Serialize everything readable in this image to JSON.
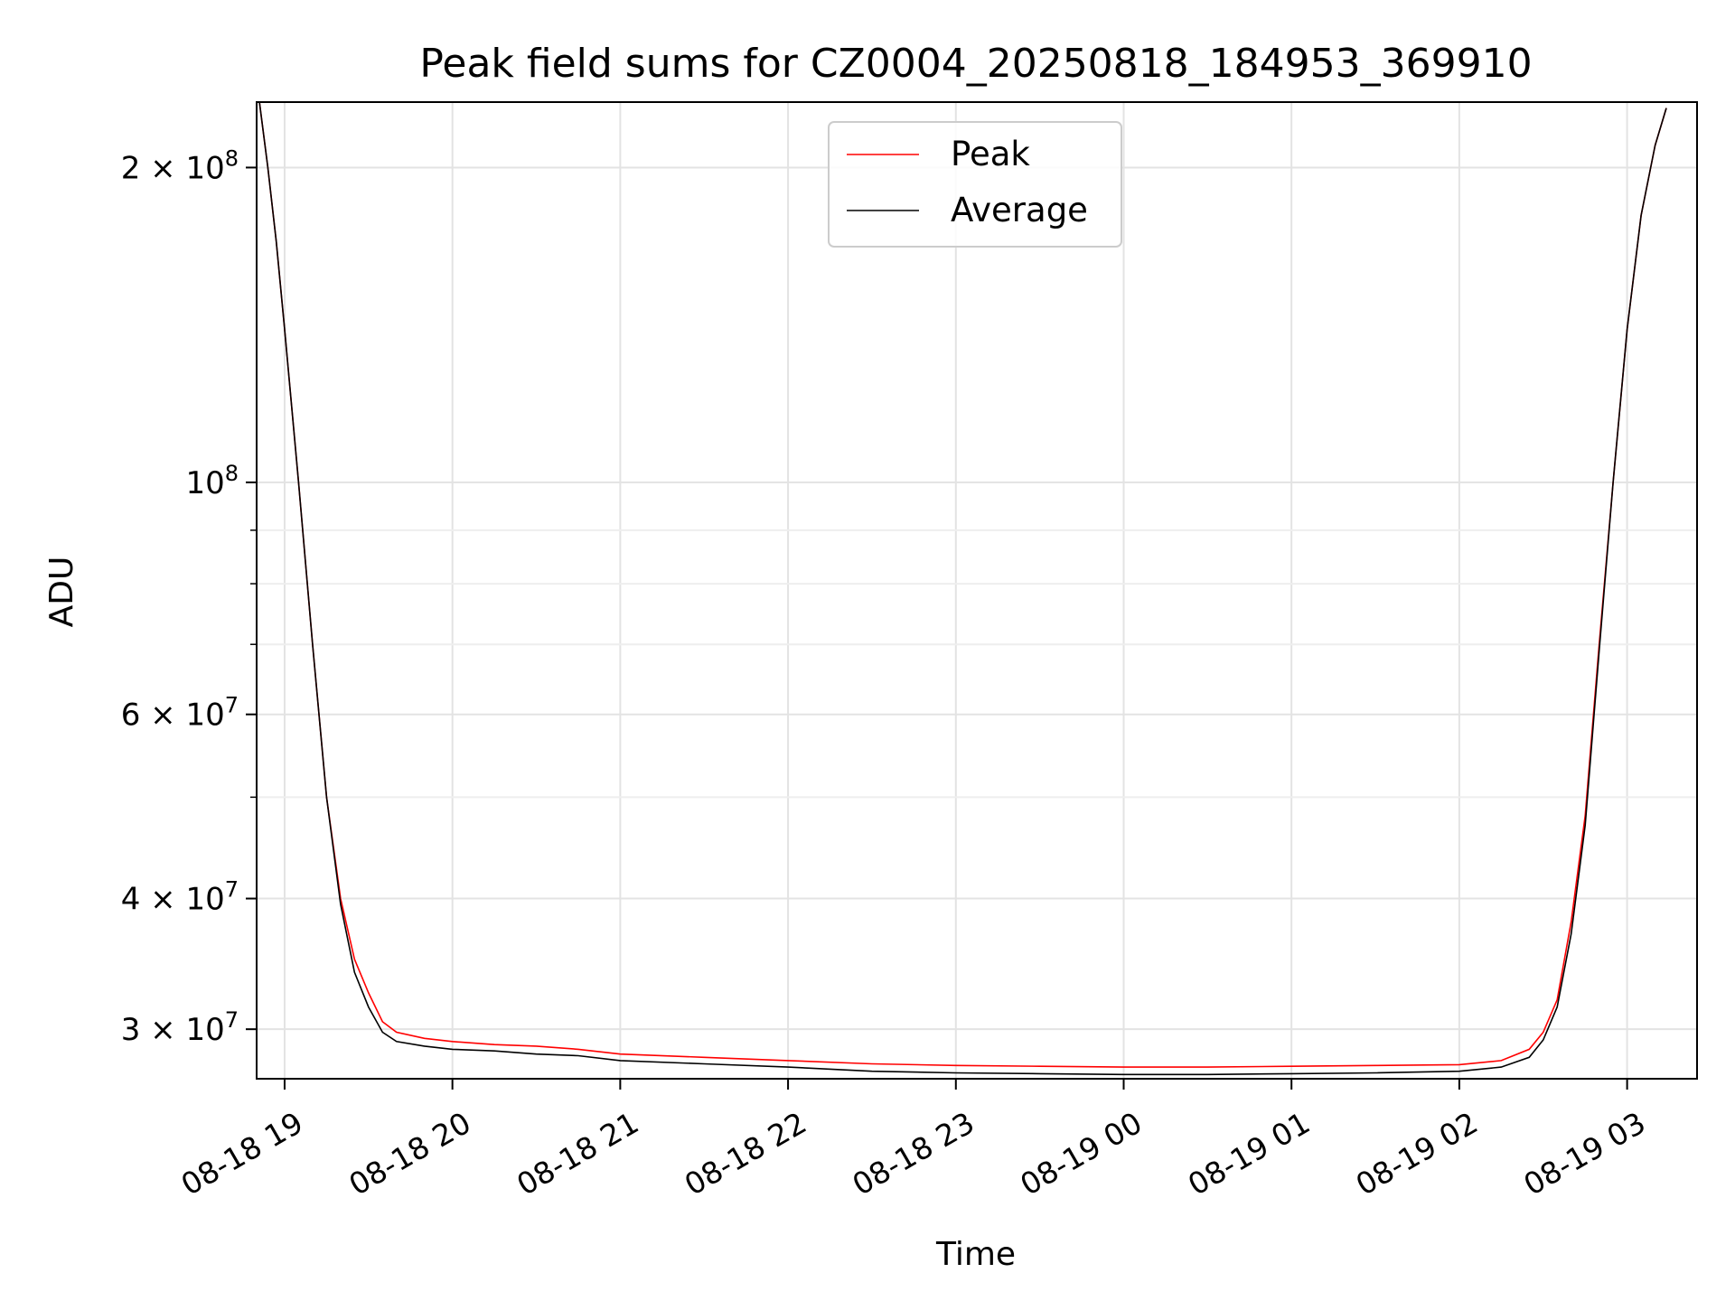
{
  "chart_data": {
    "type": "line",
    "title": "Peak field sums for CZ0004_20250818_184953_369910",
    "xlabel": "Time",
    "ylabel": "ADU",
    "xlim": [
      "2025-08-18 18:50",
      "2025-08-19 03:25"
    ],
    "ylim": [
      26900000,
      231000000
    ],
    "yscale": "log",
    "grid": true,
    "legend_position": "upper center",
    "x_ticks": [
      "08-18 19",
      "08-18 20",
      "08-18 21",
      "08-18 22",
      "08-18 23",
      "08-19 00",
      "08-19 01",
      "08-19 02",
      "08-19 03"
    ],
    "y_ticks": [
      {
        "value": 30000000,
        "mantissa": "3",
        "exponent": "7"
      },
      {
        "value": 40000000,
        "mantissa": "4",
        "exponent": "7"
      },
      {
        "value": 60000000,
        "mantissa": "6",
        "exponent": "7"
      },
      {
        "value": 100000000,
        "mantissa": "",
        "exponent": "8"
      },
      {
        "value": 200000000,
        "mantissa": "2",
        "exponent": "8"
      }
    ],
    "y_minor_ticks": [
      50000000,
      70000000,
      80000000,
      90000000
    ],
    "series": [
      {
        "name": "Peak",
        "color": "#ff0000",
        "points": [
          [
            "2025-08-18 18:51",
            231000000
          ],
          [
            "2025-08-18 18:54",
            200000000
          ],
          [
            "2025-08-18 18:57",
            170000000
          ],
          [
            "2025-08-18 19:00",
            140000000
          ],
          [
            "2025-08-18 19:05",
            100000000
          ],
          [
            "2025-08-18 19:10",
            70000000
          ],
          [
            "2025-08-18 19:15",
            50000000
          ],
          [
            "2025-08-18 19:20",
            40000000
          ],
          [
            "2025-08-18 19:25",
            35000000
          ],
          [
            "2025-08-18 19:30",
            32500000
          ],
          [
            "2025-08-18 19:35",
            30500000
          ],
          [
            "2025-08-18 19:40",
            29800000
          ],
          [
            "2025-08-18 19:50",
            29400000
          ],
          [
            "2025-08-18 20:00",
            29200000
          ],
          [
            "2025-08-18 20:15",
            29000000
          ],
          [
            "2025-08-18 20:30",
            28900000
          ],
          [
            "2025-08-18 20:45",
            28700000
          ],
          [
            "2025-08-18 21:00",
            28400000
          ],
          [
            "2025-08-18 21:30",
            28200000
          ],
          [
            "2025-08-18 22:00",
            28000000
          ],
          [
            "2025-08-18 22:30",
            27800000
          ],
          [
            "2025-08-18 23:00",
            27700000
          ],
          [
            "2025-08-18 23:30",
            27650000
          ],
          [
            "2025-08-19 00:00",
            27600000
          ],
          [
            "2025-08-19 00:30",
            27600000
          ],
          [
            "2025-08-19 01:00",
            27650000
          ],
          [
            "2025-08-19 01:30",
            27700000
          ],
          [
            "2025-08-19 02:00",
            27750000
          ],
          [
            "2025-08-19 02:15",
            28000000
          ],
          [
            "2025-08-19 02:25",
            28700000
          ],
          [
            "2025-08-19 02:30",
            29800000
          ],
          [
            "2025-08-19 02:35",
            32000000
          ],
          [
            "2025-08-19 02:40",
            38000000
          ],
          [
            "2025-08-19 02:45",
            48000000
          ],
          [
            "2025-08-19 02:50",
            70000000
          ],
          [
            "2025-08-19 02:55",
            100000000
          ],
          [
            "2025-08-19 03:00",
            140000000
          ],
          [
            "2025-08-19 03:05",
            180000000
          ],
          [
            "2025-08-19 03:10",
            210000000
          ],
          [
            "2025-08-19 03:14",
            228000000
          ]
        ]
      },
      {
        "name": "Average",
        "color": "#000000",
        "points": [
          [
            "2025-08-18 18:51",
            231000000
          ],
          [
            "2025-08-18 18:54",
            200000000
          ],
          [
            "2025-08-18 18:57",
            170000000
          ],
          [
            "2025-08-18 19:00",
            140000000
          ],
          [
            "2025-08-18 19:05",
            100000000
          ],
          [
            "2025-08-18 19:10",
            70000000
          ],
          [
            "2025-08-18 19:15",
            50000000
          ],
          [
            "2025-08-18 19:20",
            39500000
          ],
          [
            "2025-08-18 19:25",
            34000000
          ],
          [
            "2025-08-18 19:30",
            31500000
          ],
          [
            "2025-08-18 19:35",
            29800000
          ],
          [
            "2025-08-18 19:40",
            29200000
          ],
          [
            "2025-08-18 19:50",
            28900000
          ],
          [
            "2025-08-18 20:00",
            28700000
          ],
          [
            "2025-08-18 20:15",
            28600000
          ],
          [
            "2025-08-18 20:30",
            28400000
          ],
          [
            "2025-08-18 20:45",
            28300000
          ],
          [
            "2025-08-18 21:00",
            28000000
          ],
          [
            "2025-08-18 21:30",
            27800000
          ],
          [
            "2025-08-18 22:00",
            27600000
          ],
          [
            "2025-08-18 22:30",
            27350000
          ],
          [
            "2025-08-18 23:00",
            27250000
          ],
          [
            "2025-08-18 23:30",
            27200000
          ],
          [
            "2025-08-19 00:00",
            27150000
          ],
          [
            "2025-08-19 00:30",
            27150000
          ],
          [
            "2025-08-19 01:00",
            27200000
          ],
          [
            "2025-08-19 01:30",
            27250000
          ],
          [
            "2025-08-19 02:00",
            27350000
          ],
          [
            "2025-08-19 02:15",
            27600000
          ],
          [
            "2025-08-19 02:25",
            28200000
          ],
          [
            "2025-08-19 02:30",
            29300000
          ],
          [
            "2025-08-19 02:35",
            31500000
          ],
          [
            "2025-08-19 02:40",
            37000000
          ],
          [
            "2025-08-19 02:45",
            47000000
          ],
          [
            "2025-08-19 02:50",
            69000000
          ],
          [
            "2025-08-19 02:55",
            100000000
          ],
          [
            "2025-08-19 03:00",
            140000000
          ],
          [
            "2025-08-19 03:05",
            180000000
          ],
          [
            "2025-08-19 03:10",
            210000000
          ],
          [
            "2025-08-19 03:14",
            228000000
          ]
        ]
      }
    ]
  }
}
